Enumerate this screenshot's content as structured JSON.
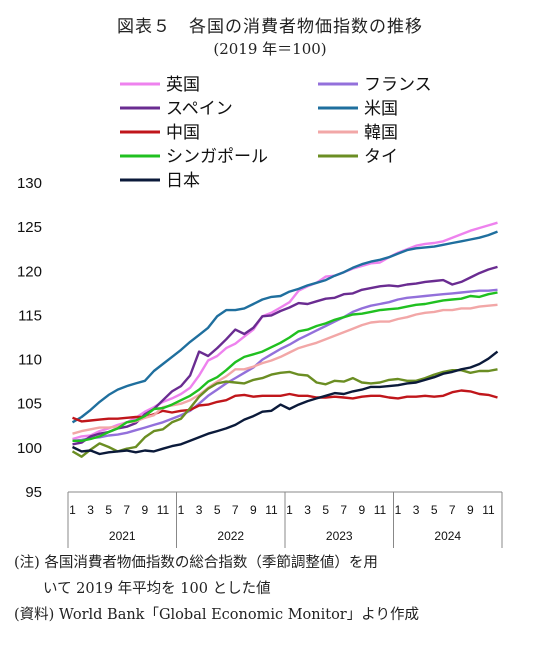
{
  "title": "図表５　各国の消費者物価指数の推移",
  "subtitle": "(2019 年＝100)",
  "notes": {
    "line1": "(注) 各国消費者物価指数の総合指数（季節調整値）を用",
    "line2": "　　いて 2019 年平均を 100 とした値",
    "line3": "(資料) World Bank「Global Economic Monitor」より作成"
  },
  "chart_data": {
    "type": "line",
    "title": "図表５　各国の消費者物価指数の推移",
    "subtitle": "(2019 年＝100)",
    "ylim": [
      95,
      130
    ],
    "yticks": [
      95,
      100,
      105,
      110,
      115,
      120,
      125,
      130
    ],
    "x_month_labels": [
      "1",
      "3",
      "5",
      "7",
      "9",
      "11",
      "1",
      "3",
      "5",
      "7",
      "9",
      "11",
      "1",
      "3",
      "5",
      "7",
      "9",
      "11",
      "1",
      "3",
      "5",
      "7",
      "9",
      "11"
    ],
    "x_year_labels": [
      "2021",
      "2022",
      "2023",
      "2024"
    ],
    "grid": false,
    "legend_position": "top",
    "x_points_note": "monthly, 2021-01 to 2024-12 (48 points)",
    "series": [
      {
        "name": "英国",
        "color": "#ee82ee",
        "values": [
          101.0,
          101.3,
          101.4,
          101.9,
          102.2,
          102.6,
          102.9,
          103.4,
          104.1,
          104.6,
          105.2,
          105.6,
          106.1,
          106.8,
          108.2,
          109.9,
          110.4,
          111.3,
          111.8,
          112.6,
          113.4,
          114.9,
          115.3,
          115.9,
          116.5,
          117.8,
          118.3,
          118.7,
          119.4,
          119.5,
          119.9,
          120.3,
          120.6,
          120.9,
          121.0,
          121.6,
          122.1,
          122.5,
          122.9,
          123.1,
          123.2,
          123.4,
          123.8,
          124.2,
          124.6,
          124.9,
          125.2,
          125.5
        ]
      },
      {
        "name": "フランス",
        "color": "#9370db",
        "values": [
          100.8,
          100.9,
          101.1,
          101.2,
          101.4,
          101.5,
          101.7,
          102.0,
          102.3,
          102.6,
          102.9,
          103.3,
          103.7,
          104.2,
          105.0,
          105.9,
          106.6,
          107.3,
          107.9,
          108.5,
          109.1,
          110.0,
          110.6,
          111.2,
          111.7,
          112.3,
          112.8,
          113.3,
          113.8,
          114.3,
          114.8,
          115.4,
          115.8,
          116.1,
          116.3,
          116.5,
          116.8,
          117.0,
          117.1,
          117.2,
          117.3,
          117.4,
          117.5,
          117.6,
          117.7,
          117.8,
          117.8,
          117.9
        ]
      },
      {
        "name": "スペイン",
        "color": "#6a2c91",
        "values": [
          100.4,
          100.6,
          101.3,
          101.6,
          101.8,
          102.2,
          102.4,
          102.8,
          103.8,
          104.4,
          105.4,
          106.4,
          107.0,
          108.2,
          110.9,
          110.4,
          111.3,
          112.3,
          113.4,
          112.9,
          113.6,
          114.9,
          115.0,
          115.5,
          115.9,
          116.4,
          116.3,
          116.6,
          116.9,
          117.0,
          117.4,
          117.5,
          117.9,
          118.1,
          118.3,
          118.4,
          118.3,
          118.5,
          118.6,
          118.8,
          118.9,
          119.0,
          118.5,
          118.8,
          119.3,
          119.8,
          120.2,
          120.5
        ]
      },
      {
        "name": "米国",
        "color": "#1f6f9e",
        "values": [
          102.9,
          103.5,
          104.3,
          105.2,
          106.0,
          106.6,
          107.0,
          107.3,
          107.6,
          108.7,
          109.5,
          110.3,
          111.1,
          112.0,
          112.8,
          113.6,
          114.9,
          115.6,
          115.6,
          115.8,
          116.3,
          116.8,
          117.1,
          117.2,
          117.7,
          118.0,
          118.4,
          118.7,
          119.0,
          119.5,
          119.9,
          120.4,
          120.8,
          121.1,
          121.3,
          121.6,
          122.0,
          122.4,
          122.6,
          122.7,
          122.8,
          123.0,
          123.2,
          123.4,
          123.6,
          123.8,
          124.1,
          124.5
        ]
      },
      {
        "name": "中国",
        "color": "#c0161b",
        "values": [
          103.4,
          103.0,
          103.1,
          103.2,
          103.3,
          103.3,
          103.4,
          103.5,
          103.5,
          103.8,
          104.2,
          104.0,
          104.2,
          104.3,
          104.8,
          104.9,
          105.2,
          105.4,
          105.9,
          106.0,
          105.8,
          105.9,
          105.9,
          105.9,
          106.1,
          105.9,
          105.9,
          105.7,
          105.7,
          105.8,
          105.7,
          105.6,
          105.8,
          105.9,
          105.9,
          105.7,
          105.6,
          105.8,
          105.8,
          105.9,
          105.8,
          105.9,
          106.3,
          106.5,
          106.4,
          106.1,
          106.0,
          105.7
        ]
      },
      {
        "name": "韓国",
        "color": "#f2a7a7",
        "values": [
          101.6,
          101.9,
          102.1,
          102.3,
          102.3,
          102.4,
          102.9,
          103.0,
          103.4,
          103.7,
          104.6,
          104.8,
          105.0,
          105.4,
          106.0,
          106.8,
          107.5,
          108.1,
          108.9,
          108.9,
          109.2,
          109.6,
          109.9,
          110.3,
          110.8,
          111.3,
          111.6,
          111.9,
          112.3,
          112.7,
          113.1,
          113.5,
          113.9,
          114.2,
          114.3,
          114.3,
          114.6,
          114.8,
          115.1,
          115.3,
          115.4,
          115.6,
          115.6,
          115.8,
          115.8,
          116.0,
          116.1,
          116.2
        ]
      },
      {
        "name": "シンガポール",
        "color": "#20c020",
        "values": [
          100.8,
          100.8,
          101.0,
          101.3,
          101.8,
          102.2,
          102.9,
          103.1,
          103.6,
          104.4,
          104.5,
          104.9,
          105.4,
          105.9,
          106.6,
          107.5,
          108.0,
          108.8,
          109.7,
          110.3,
          110.6,
          110.9,
          111.4,
          111.9,
          112.5,
          113.2,
          113.4,
          113.8,
          114.1,
          114.5,
          114.8,
          115.1,
          115.2,
          115.4,
          115.6,
          115.7,
          115.8,
          116.0,
          116.2,
          116.3,
          116.5,
          116.7,
          116.8,
          116.9,
          117.2,
          117.1,
          117.4,
          117.6
        ]
      },
      {
        "name": "タイ",
        "color": "#6b8e23",
        "values": [
          99.6,
          99.0,
          99.8,
          100.5,
          100.1,
          99.6,
          99.9,
          100.1,
          101.2,
          101.9,
          102.1,
          102.9,
          103.3,
          104.5,
          105.8,
          106.7,
          107.3,
          107.5,
          107.4,
          107.3,
          107.7,
          107.9,
          108.3,
          108.5,
          108.6,
          108.3,
          108.2,
          107.4,
          107.2,
          107.6,
          107.5,
          107.9,
          107.4,
          107.3,
          107.4,
          107.7,
          107.8,
          107.6,
          107.6,
          107.9,
          108.3,
          108.6,
          108.8,
          108.8,
          108.5,
          108.7,
          108.7,
          108.9
        ]
      },
      {
        "name": "日本",
        "color": "#0b1a3a",
        "values": [
          100.1,
          99.6,
          99.7,
          99.3,
          99.5,
          99.6,
          99.7,
          99.5,
          99.7,
          99.6,
          99.9,
          100.2,
          100.4,
          100.8,
          101.2,
          101.6,
          101.9,
          102.2,
          102.6,
          103.2,
          103.6,
          104.1,
          104.2,
          104.9,
          104.4,
          104.9,
          105.3,
          105.6,
          105.9,
          106.2,
          106.1,
          106.4,
          106.6,
          106.9,
          106.9,
          107.0,
          107.1,
          107.3,
          107.4,
          107.7,
          108.0,
          108.4,
          108.6,
          108.9,
          109.1,
          109.5,
          110.1,
          110.9
        ]
      }
    ]
  }
}
